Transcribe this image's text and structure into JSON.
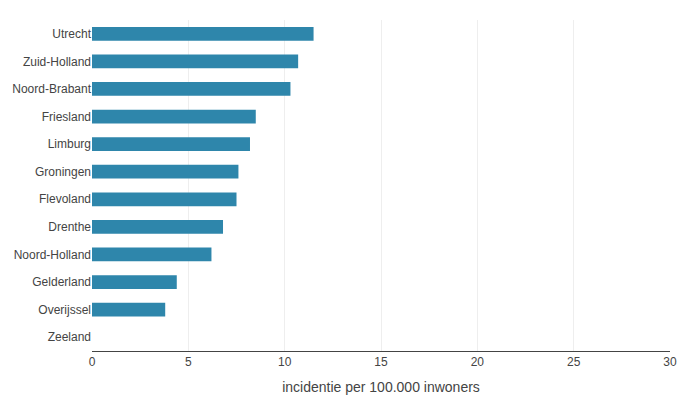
{
  "chart_data": {
    "type": "bar",
    "orientation": "horizontal",
    "categories": [
      "Utrecht",
      "Zuid-Holland",
      "Noord-Brabant",
      "Friesland",
      "Limburg",
      "Groningen",
      "Flevoland",
      "Drenthe",
      "Noord-Holland",
      "Gelderland",
      "Overijssel",
      "Zeeland"
    ],
    "values": [
      11.5,
      10.7,
      10.3,
      8.5,
      8.2,
      7.6,
      7.5,
      6.8,
      6.2,
      4.4,
      3.8,
      0.0
    ],
    "color": "#2e86ab",
    "xlabel": "incidentie per 100.000 inwoners",
    "xlim": [
      0,
      30
    ],
    "xticks": [
      0,
      5,
      10,
      15,
      20,
      25,
      30
    ],
    "grid": true
  }
}
